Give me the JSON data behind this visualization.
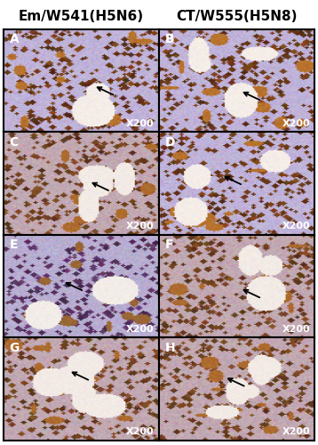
{
  "col_headers": [
    "Em/W541(H5N6)",
    "CT/W555(H5N8)"
  ],
  "panel_labels": [
    "A",
    "B",
    "C",
    "D",
    "E",
    "F",
    "G",
    "H"
  ],
  "magnification": "X200",
  "background_color": "#ffffff",
  "header_fontsize": 11,
  "label_fontsize": 10,
  "mag_fontsize": 8,
  "fig_width": 3.58,
  "fig_height": 5.0,
  "dpi": 100,
  "n_rows": 4,
  "n_cols": 2,
  "border_color": "#000000",
  "header_color": "#000000",
  "label_color": "#ffffff",
  "mag_color": "#ffffff",
  "panel_styles": [
    [
      "purple_brown",
      "purple_brown"
    ],
    [
      "brown_purple",
      "purple_brown"
    ],
    [
      "purple",
      "brown_purple"
    ],
    [
      "brown_purple",
      "brown_purple"
    ]
  ],
  "arrow_tips": [
    [
      [
        0.58,
        0.45
      ],
      [
        0.52,
        0.4
      ]
    ],
    [
      [
        0.55,
        0.52
      ],
      [
        0.4,
        0.58
      ]
    ],
    [
      [
        0.38,
        0.55
      ],
      [
        0.52,
        0.48
      ]
    ],
    [
      [
        0.42,
        0.68
      ],
      [
        0.42,
        0.62
      ]
    ]
  ]
}
